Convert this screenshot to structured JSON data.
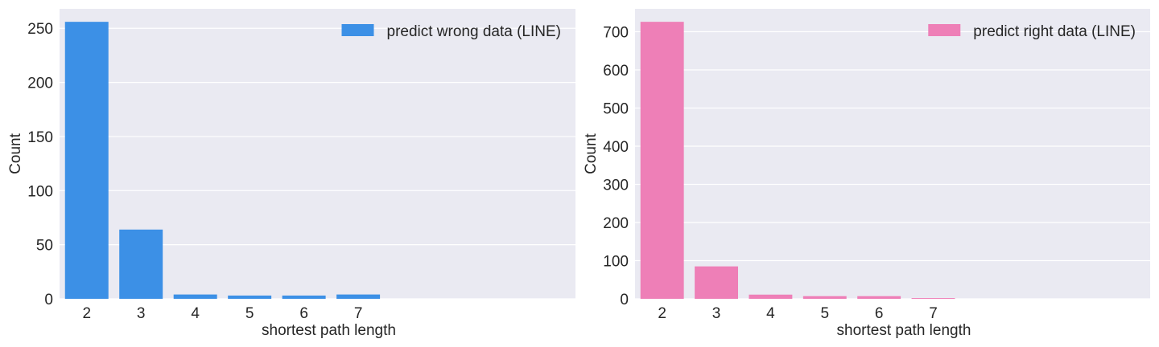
{
  "chart_data": [
    {
      "type": "bar",
      "categories": [
        "2",
        "3",
        "4",
        "5",
        "6",
        "7"
      ],
      "series": [
        {
          "name": "predict wrong data (LINE)",
          "values": [
            256,
            64,
            4,
            3,
            3,
            4
          ]
        }
      ],
      "xlabel": "shortest path length",
      "ylabel": "Count",
      "ylim": [
        0,
        268
      ],
      "yticks": [
        0,
        50,
        100,
        150,
        200,
        250
      ],
      "x_slots": 9.5,
      "grid": true,
      "legend": "top-right",
      "color": "#3c90e6",
      "background": "#eaeaf2"
    },
    {
      "type": "bar",
      "categories": [
        "2",
        "3",
        "4",
        "5",
        "6",
        "7"
      ],
      "series": [
        {
          "name": "predict right data (LINE)",
          "values": [
            726,
            85,
            11,
            7,
            7,
            2
          ]
        }
      ],
      "xlabel": "shortest path length",
      "ylabel": "Count",
      "ylim": [
        0,
        760
      ],
      "yticks": [
        0,
        100,
        200,
        300,
        400,
        500,
        600,
        700
      ],
      "x_slots": 9.5,
      "grid": true,
      "legend": "top-right",
      "color": "#ee7fb7",
      "background": "#eaeaf2"
    }
  ]
}
